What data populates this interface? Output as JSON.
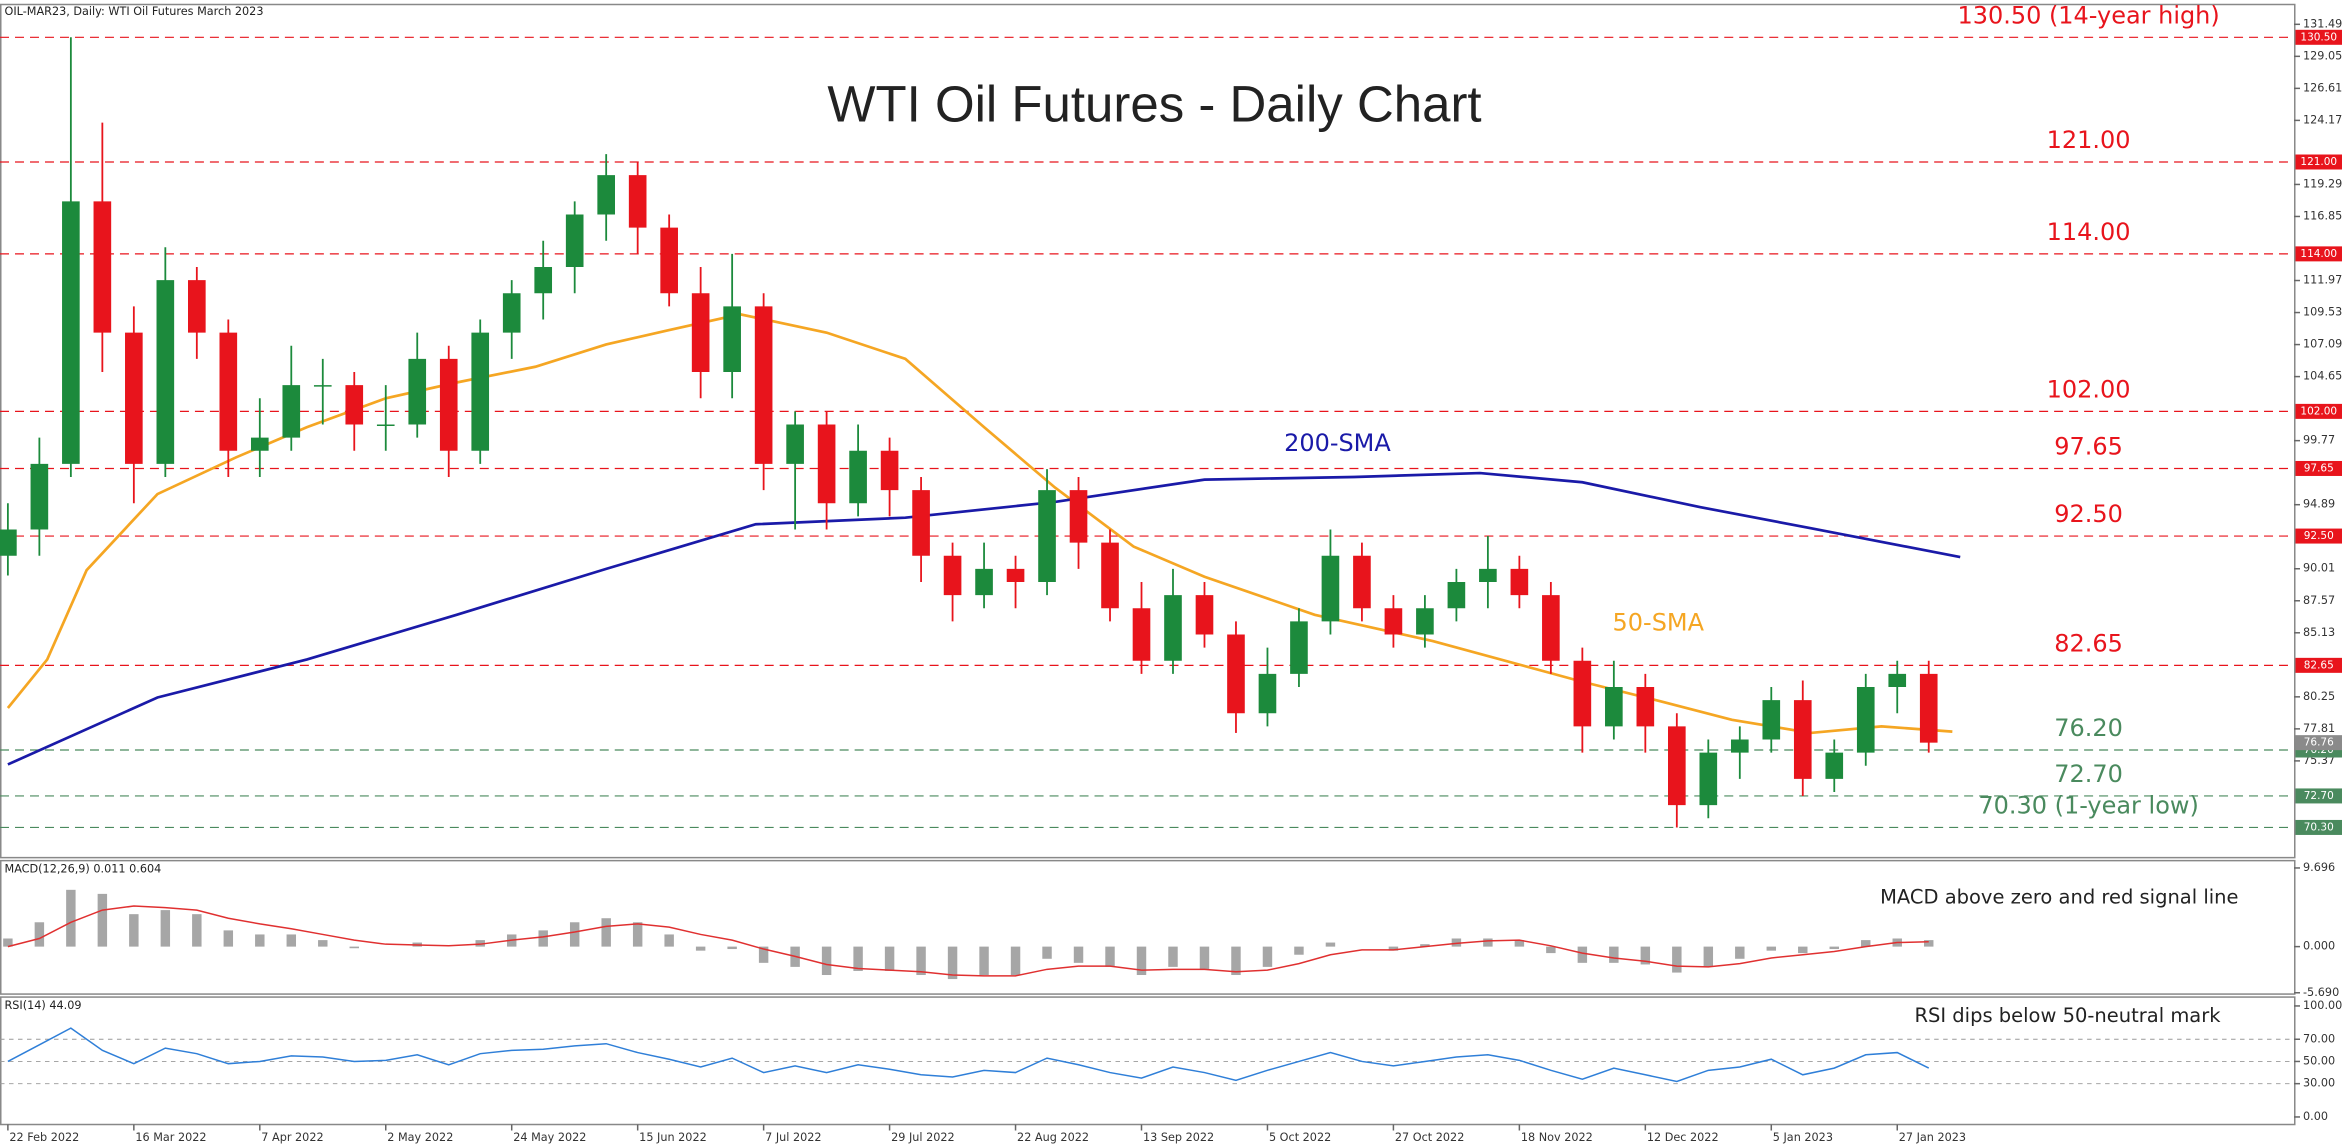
{
  "header": "OIL-MAR23, Daily:  WTI Oil Futures March 2023",
  "chart_data": [
    {
      "type": "candlestick",
      "title": "WTI Oil Futures - Daily Chart",
      "up_color": "#1c8a3c",
      "down_color": "#e8141c",
      "open": [
        91,
        93,
        98,
        118,
        108,
        98,
        112,
        108,
        99,
        100,
        104,
        104,
        101,
        101,
        106,
        99,
        108,
        111,
        113,
        117,
        120,
        116,
        111,
        105,
        110,
        98,
        101,
        95,
        99,
        96,
        91,
        88,
        90,
        89,
        96,
        92,
        87,
        83,
        88,
        85,
        79,
        82,
        86,
        91,
        87,
        85,
        87,
        89,
        90,
        88,
        83,
        78,
        81,
        78,
        72,
        76,
        77,
        80,
        74,
        76,
        81,
        82
      ],
      "high": [
        95,
        100,
        130.5,
        124,
        110,
        114.5,
        113,
        109,
        103,
        107,
        106,
        105,
        104,
        108,
        107,
        109,
        112,
        115,
        118,
        121.6,
        121,
        117,
        113,
        114,
        111,
        102,
        102,
        101,
        100,
        97,
        92,
        92,
        91,
        97.6,
        97,
        93,
        89,
        90,
        89,
        86,
        84,
        87,
        93,
        92,
        88,
        88,
        90,
        92.5,
        91,
        89,
        84,
        83,
        82,
        79,
        77,
        78,
        81,
        81.5,
        77,
        82,
        83,
        83
      ],
      "low": [
        89.5,
        91,
        97,
        105,
        95,
        97,
        106,
        97,
        97,
        99,
        101,
        99,
        99,
        100,
        97,
        98,
        106,
        109,
        111,
        115,
        114,
        110,
        103,
        103,
        96,
        93,
        93,
        94,
        94,
        89,
        86,
        87,
        87,
        88,
        90,
        86,
        82,
        82,
        84,
        77.5,
        78,
        81,
        85,
        86,
        84,
        84,
        86,
        87,
        87,
        82,
        76,
        77,
        76,
        70.3,
        71,
        74,
        76,
        72.7,
        73,
        75,
        79,
        76
      ],
      "close": [
        93,
        98,
        118,
        108,
        98,
        112,
        108,
        99,
        100,
        104,
        104,
        101,
        101,
        106,
        99,
        108,
        111,
        113,
        117,
        120,
        116,
        111,
        105,
        110,
        98,
        101,
        95,
        99,
        96,
        91,
        88,
        90,
        89,
        96,
        92,
        87,
        83,
        88,
        85,
        79,
        82,
        86,
        91,
        87,
        85,
        87,
        89,
        90,
        88,
        83,
        78,
        81,
        78,
        72,
        76,
        77,
        80,
        74,
        76,
        81,
        82,
        76.76
      ],
      "xlim": [
        -0.25,
        72.6
      ],
      "xticks": [
        {
          "value": 0,
          "label": "22 Feb 2022"
        },
        {
          "value": 4,
          "label": "16 Mar 2022"
        },
        {
          "value": 8,
          "label": "7 Apr 2022"
        },
        {
          "value": 12,
          "label": "2 May 2022"
        },
        {
          "value": 16,
          "label": "24 May 2022"
        },
        {
          "value": 20,
          "label": "15 Jun 2022"
        },
        {
          "value": 24,
          "label": "7 Jul 2022"
        },
        {
          "value": 28,
          "label": "29 Jul 2022"
        },
        {
          "value": 32,
          "label": "22 Aug 2022"
        },
        {
          "value": 36,
          "label": "13 Sep 2022"
        },
        {
          "value": 40,
          "label": "5 Oct 2022"
        },
        {
          "value": 44,
          "label": "27 Oct 2022"
        },
        {
          "value": 48,
          "label": "18 Nov 2022"
        },
        {
          "value": 52,
          "label": "12 Dec 2022"
        },
        {
          "value": 56,
          "label": "5 Jan 2023"
        },
        {
          "value": 60,
          "label": "27 Jan 2023"
        }
      ],
      "ylim": [
        68,
        133
      ],
      "yticks": [
        131.49,
        129.05,
        126.61,
        124.17,
        119.29,
        116.85,
        111.97,
        109.53,
        107.09,
        104.65,
        99.77,
        94.89,
        90.01,
        87.57,
        85.13,
        80.25,
        77.81,
        75.37
      ],
      "levels": [
        {
          "value": 130.5,
          "label": "130.50",
          "text": "130.50 (14-year high)",
          "color": "#e8141c"
        },
        {
          "value": 121,
          "label": "121.00",
          "text": "121.00",
          "color": "#e8141c"
        },
        {
          "value": 114,
          "label": "114.00",
          "text": "114.00",
          "color": "#e8141c"
        },
        {
          "value": 102,
          "label": "102.00",
          "text": "102.00",
          "color": "#e8141c"
        },
        {
          "value": 97.65,
          "label": "97.65",
          "text": "97.65",
          "color": "#e8141c"
        },
        {
          "value": 92.5,
          "label": "92.50",
          "text": "92.50",
          "color": "#e8141c"
        },
        {
          "value": 82.65,
          "label": "82.65",
          "text": "82.65",
          "color": "#e8141c"
        },
        {
          "value": 76.2,
          "label": "76.20",
          "text": "76.20",
          "color": "#4a8a5e"
        },
        {
          "value": 72.7,
          "label": "72.70",
          "text": "72.70",
          "color": "#4a8a5e"
        },
        {
          "value": 70.3,
          "label": "70.30",
          "text": "70.30 (1-year low)",
          "color": "#4a8a5e"
        }
      ],
      "last_price": {
        "value": 76.76,
        "label": "76.76"
      },
      "series": [
        {
          "color": "#f5a623",
          "x": [
            0,
            1.25,
            2.5,
            4.75,
            7.25,
            9.5,
            12,
            14.25,
            16.75,
            19,
            21,
            23.25,
            26,
            28.5,
            31,
            33.25,
            35.75,
            38,
            41.5,
            45.25,
            50,
            52.5,
            54.75,
            57.25,
            59.5,
            61.75
          ],
          "values": [
            79.4,
            83.1,
            89.9,
            95.7,
            98.5,
            100.8,
            103,
            104.2,
            105.4,
            107.1,
            108.2,
            109.4,
            108,
            106,
            100.8,
            96.2,
            91.7,
            89.4,
            86.5,
            84.5,
            81.4,
            79.9,
            78.5,
            77.5,
            78,
            77.6
          ]
        },
        {
          "color": "#1a1aa8",
          "x": [
            0,
            4.75,
            9.5,
            14.25,
            19,
            23.75,
            28.5,
            33.25,
            38,
            42.75,
            46.75,
            50,
            53.75,
            57.25,
            62
          ],
          "values": [
            75.1,
            80.2,
            83.1,
            86.5,
            90,
            93.4,
            93.9,
            95.1,
            96.8,
            97,
            97.3,
            96.6,
            94.7,
            93.1,
            90.9
          ]
        }
      ],
      "annotations": [
        {
          "text": "200-SMA",
          "color": "#1a1aa8"
        },
        {
          "text": "50-SMA",
          "color": "#f5a623"
        }
      ]
    },
    {
      "type": "macd",
      "title": "MACD(12,26,9) 0.011 0.604",
      "annotation": "MACD above zero and red signal line",
      "ylim": [
        -5.85,
        10.6
      ],
      "yticks": [
        9.696,
        {
          "value": 0,
          "label": "0.000"
        },
        {
          "value": -5.69,
          "label": "-5.690"
        }
      ],
      "series": [
        {
          "style": "histogram",
          "color": "#a6a6a6",
          "values": [
            1,
            3,
            7,
            6.5,
            4,
            4.5,
            4,
            2,
            1.5,
            1.5,
            0.8,
            -0.2,
            0,
            0.5,
            0,
            0.8,
            1.5,
            2,
            3,
            3.5,
            3,
            1.5,
            -0.5,
            -0.3,
            -2,
            -2.5,
            -3.5,
            -3,
            -3,
            -3.5,
            -4,
            -3.5,
            -3.5,
            -1.5,
            -2,
            -2.5,
            -3.5,
            -2.5,
            -2.8,
            -3.5,
            -2.5,
            -1,
            0.5,
            0,
            -0.5,
            0.3,
            1,
            1,
            0.8,
            -0.8,
            -2,
            -2,
            -2.2,
            -3.2,
            -2.5,
            -1.5,
            -0.5,
            -0.8,
            -0.3,
            0.8,
            1,
            0.8
          ]
        },
        {
          "style": "line",
          "color": "#e03030",
          "values": [
            0,
            1,
            3,
            4.5,
            5,
            4.8,
            4.5,
            3.5,
            2.8,
            2.2,
            1.5,
            0.8,
            0.3,
            0.2,
            0.1,
            0.3,
            0.8,
            1.2,
            1.8,
            2.5,
            2.8,
            2.4,
            1.5,
            0.8,
            -0.3,
            -1.2,
            -2.2,
            -2.7,
            -2.9,
            -3.1,
            -3.5,
            -3.6,
            -3.6,
            -2.8,
            -2.4,
            -2.4,
            -2.9,
            -2.8,
            -2.8,
            -3.1,
            -2.9,
            -2.1,
            -1,
            -0.4,
            -0.4,
            0,
            0.4,
            0.7,
            0.8,
            0.1,
            -0.8,
            -1.4,
            -1.8,
            -2.4,
            -2.5,
            -2.1,
            -1.4,
            -1,
            -0.6,
            0,
            0.5,
            0.604
          ]
        }
      ]
    },
    {
      "type": "rsi",
      "title": "RSI(14) 44.09",
      "annotation": "RSI dips below 50-neutral mark",
      "ylim": [
        -6.8,
        108
      ],
      "yticks": [
        {
          "value": 100,
          "label": "100.00"
        },
        {
          "value": 70,
          "label": "70.00"
        },
        {
          "value": 50,
          "label": "50.00"
        },
        {
          "value": 30,
          "label": "30.00"
        },
        {
          "value": 0,
          "label": "0.00"
        }
      ],
      "grid_levels": [
        70,
        50,
        30
      ],
      "series": [
        {
          "style": "line",
          "color": "#2f7fd8",
          "values": [
            50,
            65,
            80,
            60,
            48,
            62,
            57,
            48,
            50,
            55,
            54,
            50,
            51,
            56,
            47,
            57,
            60,
            61,
            64,
            66,
            58,
            52,
            45,
            53,
            40,
            46,
            40,
            47,
            43,
            38,
            36,
            42,
            40,
            53,
            47,
            40,
            35,
            45,
            40,
            33,
            42,
            50,
            58,
            50,
            46,
            50,
            54,
            56,
            51,
            42,
            34,
            44,
            38,
            32,
            42,
            45,
            52,
            38,
            44,
            56,
            58,
            44.09
          ]
        }
      ]
    }
  ]
}
